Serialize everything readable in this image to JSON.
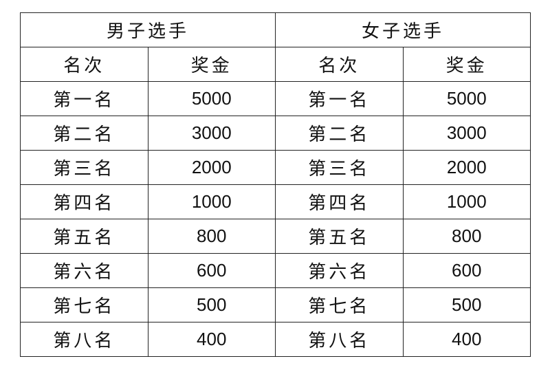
{
  "groups": [
    "男子选手",
    "女子选手"
  ],
  "columns": [
    "名次",
    "奖金"
  ],
  "men": [
    {
      "rank": "第一名",
      "prize": "5000"
    },
    {
      "rank": "第二名",
      "prize": "3000"
    },
    {
      "rank": "第三名",
      "prize": "2000"
    },
    {
      "rank": "第四名",
      "prize": "1000"
    },
    {
      "rank": "第五名",
      "prize": "800"
    },
    {
      "rank": "第六名",
      "prize": "600"
    },
    {
      "rank": "第七名",
      "prize": "500"
    },
    {
      "rank": "第八名",
      "prize": "400"
    }
  ],
  "women": [
    {
      "rank": "第一名",
      "prize": "5000"
    },
    {
      "rank": "第二名",
      "prize": "3000"
    },
    {
      "rank": "第三名",
      "prize": "2000"
    },
    {
      "rank": "第四名",
      "prize": "1000"
    },
    {
      "rank": "第五名",
      "prize": "800"
    },
    {
      "rank": "第六名",
      "prize": "600"
    },
    {
      "rank": "第七名",
      "prize": "500"
    },
    {
      "rank": "第八名",
      "prize": "400"
    }
  ]
}
